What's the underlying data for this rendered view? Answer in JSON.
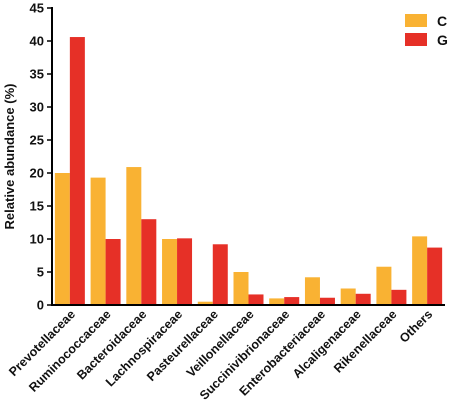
{
  "chart_data": {
    "type": "bar",
    "title": "",
    "xlabel": "",
    "ylabel": "Relative abundance (%)",
    "ylim": [
      0,
      45
    ],
    "yticks": [
      0,
      5,
      10,
      15,
      20,
      25,
      30,
      35,
      40,
      45
    ],
    "grid": false,
    "legend_position": "top-right",
    "categories": [
      "Prevotellaceae",
      "Ruminococcaceae",
      "Bacteroidaceae",
      "Lachnospiraceae",
      "Pasteurellaceae",
      "Veillonellaceae",
      "Succinivibrionaceae",
      "Enterobacteriaceae",
      "Alcaligenaceae",
      "Rikenellaceae",
      "Others"
    ],
    "series": [
      {
        "name": "C",
        "color": "#F9B233",
        "values": [
          20.0,
          19.3,
          20.9,
          10.0,
          0.5,
          5.0,
          1.0,
          4.2,
          2.5,
          5.8,
          10.4
        ]
      },
      {
        "name": "G",
        "color": "#E63027",
        "values": [
          40.6,
          10.0,
          13.0,
          10.1,
          9.2,
          1.6,
          1.2,
          1.1,
          1.7,
          2.3,
          8.7
        ]
      }
    ]
  }
}
